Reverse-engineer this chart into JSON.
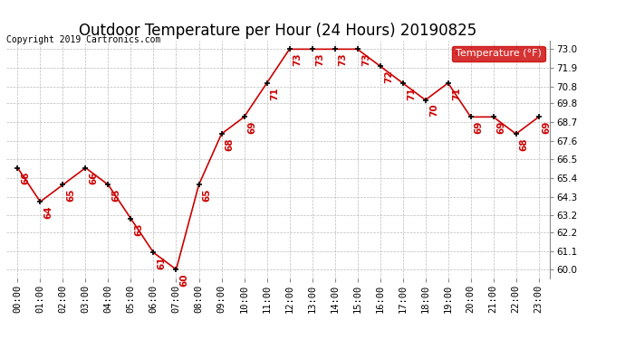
{
  "title": "Outdoor Temperature per Hour (24 Hours) 20190825",
  "copyright": "Copyright 2019 Cartronics.com",
  "legend_label": "Temperature (°F)",
  "hours": [
    0,
    1,
    2,
    3,
    4,
    5,
    6,
    7,
    8,
    9,
    10,
    11,
    12,
    13,
    14,
    15,
    16,
    17,
    18,
    19,
    20,
    21,
    22,
    23
  ],
  "hour_labels": [
    "00:00",
    "01:00",
    "02:00",
    "03:00",
    "04:00",
    "05:00",
    "06:00",
    "07:00",
    "08:00",
    "09:00",
    "10:00",
    "11:00",
    "12:00",
    "13:00",
    "14:00",
    "15:00",
    "16:00",
    "17:00",
    "18:00",
    "19:00",
    "20:00",
    "21:00",
    "22:00",
    "23:00"
  ],
  "temps": [
    66,
    64,
    65,
    66,
    65,
    63,
    61,
    60,
    65,
    68,
    69,
    71,
    73,
    73,
    73,
    73,
    72,
    71,
    70,
    71,
    69,
    69,
    68,
    69
  ],
  "ylim": [
    59.5,
    73.5
  ],
  "yticks": [
    60.0,
    61.1,
    62.2,
    63.2,
    64.3,
    65.4,
    66.5,
    67.6,
    68.7,
    69.8,
    70.8,
    71.9,
    73.0
  ],
  "line_color": "#cc0000",
  "marker_color": "#000000",
  "bg_color": "#ffffff",
  "grid_color": "#bbbbbb",
  "title_fontsize": 12,
  "copyright_fontsize": 7,
  "label_fontsize": 7.5,
  "annotation_fontsize": 7.5,
  "legend_bg": "#cc0000",
  "legend_text_color": "#ffffff",
  "legend_fontsize": 8
}
